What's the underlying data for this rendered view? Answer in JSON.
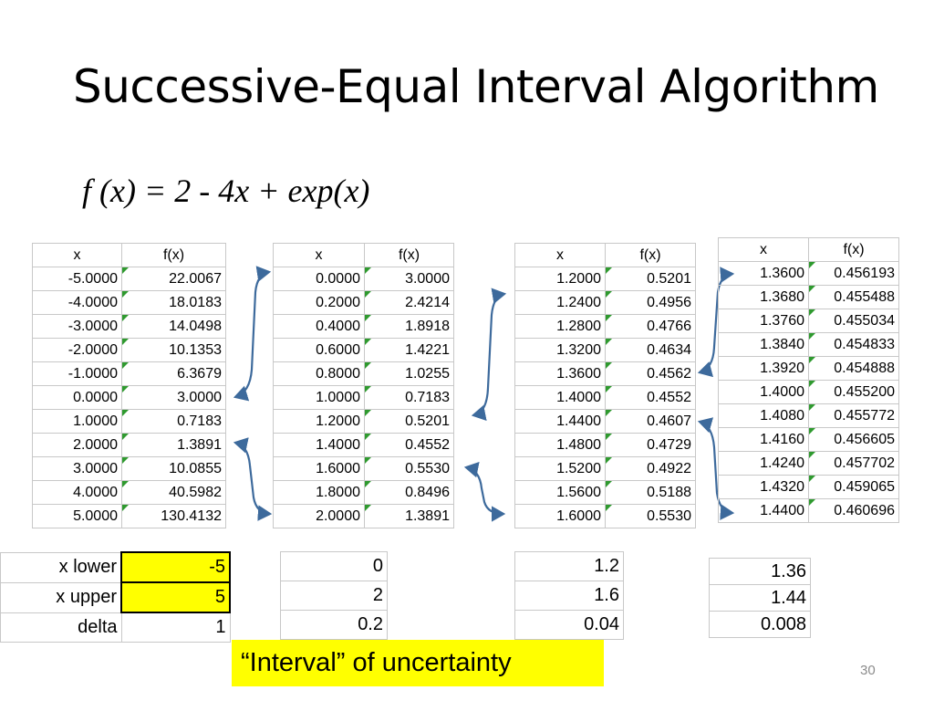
{
  "title": "Successive-Equal Interval Algorithm",
  "formula": "f (x) = 2 - 4x + exp(x)",
  "tables": [
    {
      "header": [
        "x",
        "f(x)"
      ],
      "rows": [
        [
          "-5.0000",
          "22.0067"
        ],
        [
          "-4.0000",
          "18.0183"
        ],
        [
          "-3.0000",
          "14.0498"
        ],
        [
          "-2.0000",
          "10.1353"
        ],
        [
          "-1.0000",
          "6.3679"
        ],
        [
          "0.0000",
          "3.0000"
        ],
        [
          "1.0000",
          "0.7183"
        ],
        [
          "2.0000",
          "1.3891"
        ],
        [
          "3.0000",
          "10.0855"
        ],
        [
          "4.0000",
          "40.5982"
        ],
        [
          "5.0000",
          "130.4132"
        ]
      ]
    },
    {
      "header": [
        "x",
        "f(x)"
      ],
      "rows": [
        [
          "0.0000",
          "3.0000"
        ],
        [
          "0.2000",
          "2.4214"
        ],
        [
          "0.4000",
          "1.8918"
        ],
        [
          "0.6000",
          "1.4221"
        ],
        [
          "0.8000",
          "1.0255"
        ],
        [
          "1.0000",
          "0.7183"
        ],
        [
          "1.2000",
          "0.5201"
        ],
        [
          "1.4000",
          "0.4552"
        ],
        [
          "1.6000",
          "0.5530"
        ],
        [
          "1.8000",
          "0.8496"
        ],
        [
          "2.0000",
          "1.3891"
        ]
      ]
    },
    {
      "header": [
        "x",
        "f(x)"
      ],
      "rows": [
        [
          "1.2000",
          "0.5201"
        ],
        [
          "1.2400",
          "0.4956"
        ],
        [
          "1.2800",
          "0.4766"
        ],
        [
          "1.3200",
          "0.4634"
        ],
        [
          "1.3600",
          "0.4562"
        ],
        [
          "1.4000",
          "0.4552"
        ],
        [
          "1.4400",
          "0.4607"
        ],
        [
          "1.4800",
          "0.4729"
        ],
        [
          "1.5200",
          "0.4922"
        ],
        [
          "1.5600",
          "0.5188"
        ],
        [
          "1.6000",
          "0.5530"
        ]
      ]
    },
    {
      "header": [
        "x",
        "f(x)"
      ],
      "rows": [
        [
          "1.3600",
          "0.456193"
        ],
        [
          "1.3680",
          "0.455488"
        ],
        [
          "1.3760",
          "0.455034"
        ],
        [
          "1.3840",
          "0.454833"
        ],
        [
          "1.3920",
          "0.454888"
        ],
        [
          "1.4000",
          "0.455200"
        ],
        [
          "1.4080",
          "0.455772"
        ],
        [
          "1.4160",
          "0.456605"
        ],
        [
          "1.4240",
          "0.457702"
        ],
        [
          "1.4320",
          "0.459065"
        ],
        [
          "1.4400",
          "0.460696"
        ]
      ]
    }
  ],
  "params": [
    {
      "labels": [
        "x lower",
        "x upper",
        "delta"
      ],
      "values": [
        "-5",
        "5",
        "1"
      ]
    },
    {
      "values": [
        "0",
        "2",
        "0.2"
      ]
    },
    {
      "values": [
        "1.2",
        "1.6",
        "0.04"
      ]
    },
    {
      "values": [
        "1.36",
        "1.44",
        "0.008"
      ]
    }
  ],
  "callout": "“Interval” of uncertainty",
  "page_number": "30"
}
